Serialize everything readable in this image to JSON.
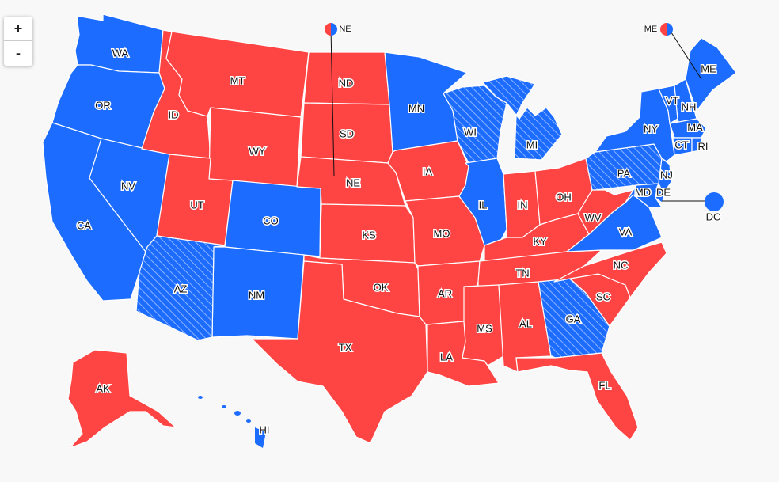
{
  "controls": {
    "zoom_in": "+",
    "zoom_out": "-"
  },
  "colors": {
    "dem": "#1c6cff",
    "rep": "#ff4444",
    "hatch": "#ffffff"
  },
  "states": {
    "WA": "WA",
    "OR": "OR",
    "CA": "CA",
    "NV": "NV",
    "ID": "ID",
    "MT": "MT",
    "WY": "WY",
    "UT": "UT",
    "CO": "CO",
    "AZ": "AZ",
    "NM": "NM",
    "ND": "ND",
    "SD": "SD",
    "NE": "NE",
    "KS": "KS",
    "OK": "OK",
    "TX": "TX",
    "MN": "MN",
    "IA": "IA",
    "MO": "MO",
    "AR": "AR",
    "LA": "LA",
    "WI": "WI",
    "IL": "IL",
    "MI": "MI",
    "IN": "IN",
    "OH": "OH",
    "KY": "KY",
    "TN": "TN",
    "MS": "MS",
    "AL": "AL",
    "GA": "GA",
    "FL": "FL",
    "SC": "SC",
    "NC": "NC",
    "VA": "VA",
    "WV": "WV",
    "PA": "PA",
    "NY": "NY",
    "VT": "VT",
    "NH": "NH",
    "ME": "ME",
    "MA": "MA",
    "CT": "CT",
    "RI": "RI",
    "NJ": "NJ",
    "DE": "DE",
    "MD": "MD",
    "DC": "DC",
    "AK": "AK",
    "HI": "HI"
  },
  "callouts": {
    "ne_split": "NE",
    "me_split": "ME",
    "dc": "DC"
  }
}
